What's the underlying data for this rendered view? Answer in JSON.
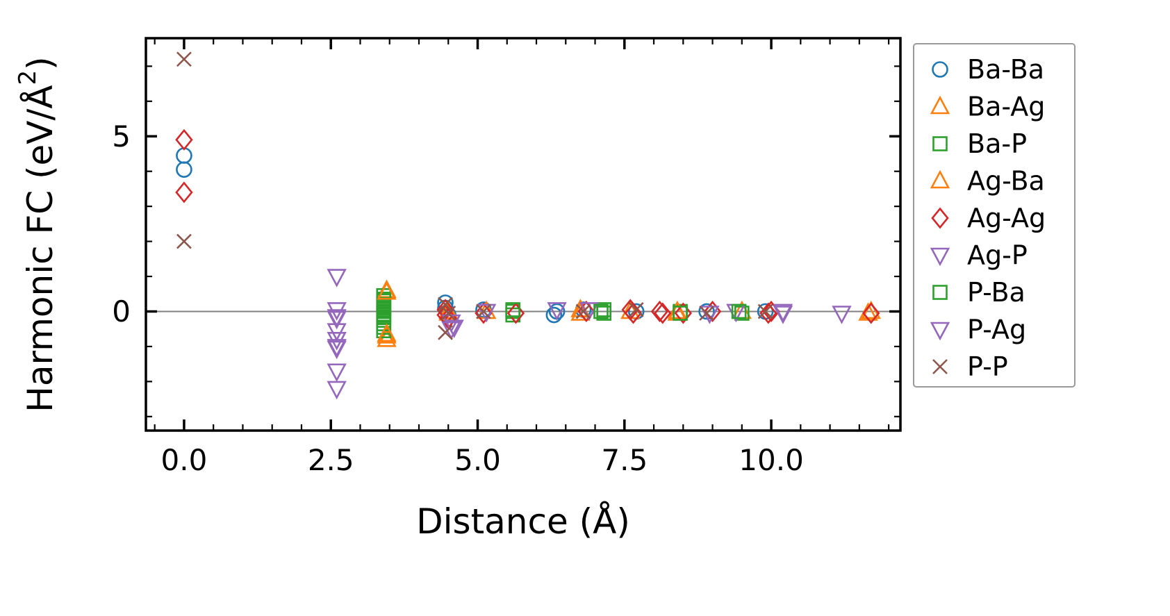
{
  "figure": {
    "background": "#ffffff"
  },
  "chart_data": {
    "type": "scatter",
    "title": "",
    "xlabel": "Distance (Å)",
    "ylabel": "Harmonic FC (eV/Å²)",
    "xlim": [
      -0.65,
      12.2
    ],
    "ylim": [
      -3.4,
      7.8
    ],
    "xticks": [
      0.0,
      2.5,
      5.0,
      7.5,
      10.0
    ],
    "xtick_labels": [
      "0.0",
      "2.5",
      "5.0",
      "7.5",
      "10.0"
    ],
    "yticks": [
      0,
      5
    ],
    "ytick_labels": [
      "0",
      "5"
    ],
    "minor_x_step": 0.5,
    "minor_y_step": 1.0,
    "grid": false,
    "zero_line": {
      "y": 0,
      "color": "#808080"
    },
    "axis_color": "#000000",
    "legend": {
      "position": "outside-right",
      "border_color": "#999999",
      "background": "#ffffff"
    },
    "series": [
      {
        "name": "Ba-Ba",
        "marker": "circle",
        "color": "#1f77b4",
        "points": [
          [
            0,
            4.45
          ],
          [
            0,
            4.05
          ],
          [
            4.45,
            0.25
          ],
          [
            4.45,
            0.1
          ],
          [
            4.5,
            -0.1
          ],
          [
            5.1,
            0.05
          ],
          [
            6.3,
            -0.1
          ],
          [
            6.35,
            0.0
          ],
          [
            6.8,
            0.05
          ],
          [
            7.7,
            0.0
          ],
          [
            8.9,
            0.0
          ],
          [
            9.9,
            0.0
          ]
        ]
      },
      {
        "name": "Ba-Ag",
        "marker": "triangle-up",
        "color": "#ff7f0e",
        "points": [
          [
            3.45,
            0.6
          ],
          [
            3.45,
            -0.7
          ],
          [
            3.45,
            -0.8
          ],
          [
            4.5,
            -0.05
          ],
          [
            5.15,
            0.0
          ],
          [
            6.75,
            0.05
          ],
          [
            7.6,
            0.0
          ],
          [
            8.4,
            -0.05
          ],
          [
            9.5,
            0.0
          ],
          [
            11.7,
            0.0
          ]
        ]
      },
      {
        "name": "Ba-P",
        "marker": "square",
        "color": "#2ca02c",
        "points": [
          [
            3.4,
            0.45
          ],
          [
            3.4,
            0.35
          ],
          [
            3.4,
            0.3
          ],
          [
            3.4,
            0.2
          ],
          [
            3.4,
            0.15
          ],
          [
            3.4,
            0.1
          ],
          [
            3.4,
            0.05
          ],
          [
            3.4,
            0.0
          ],
          [
            3.4,
            -0.1
          ],
          [
            3.4,
            -0.15
          ],
          [
            3.4,
            -0.25
          ],
          [
            3.4,
            -0.35
          ],
          [
            3.4,
            -0.45
          ],
          [
            3.4,
            -0.55
          ],
          [
            5.6,
            0.0
          ],
          [
            5.6,
            -0.1
          ],
          [
            7.15,
            0.05
          ],
          [
            7.15,
            -0.05
          ],
          [
            8.45,
            0.0
          ],
          [
            9.5,
            -0.05
          ]
        ]
      },
      {
        "name": "Ag-Ba",
        "marker": "triangle-up",
        "color": "#ff7f0e",
        "points": [
          [
            3.45,
            0.55
          ],
          [
            3.45,
            -0.65
          ],
          [
            4.5,
            0.0
          ],
          [
            6.75,
            -0.05
          ],
          [
            8.4,
            0.0
          ],
          [
            11.65,
            -0.05
          ]
        ]
      },
      {
        "name": "Ag-Ag",
        "marker": "diamond",
        "color": "#d62728",
        "points": [
          [
            0,
            4.9
          ],
          [
            0,
            3.4
          ],
          [
            4.45,
            0.05
          ],
          [
            4.45,
            -0.1
          ],
          [
            4.5,
            -0.2
          ],
          [
            5.1,
            -0.05
          ],
          [
            5.65,
            -0.05
          ],
          [
            6.85,
            0.0
          ],
          [
            7.6,
            0.05
          ],
          [
            7.65,
            -0.05
          ],
          [
            8.1,
            0.0
          ],
          [
            8.15,
            -0.05
          ],
          [
            8.5,
            -0.05
          ],
          [
            9.0,
            0.0
          ],
          [
            9.95,
            -0.05
          ],
          [
            10.0,
            0.0
          ],
          [
            11.7,
            -0.05
          ]
        ]
      },
      {
        "name": "Ag-P",
        "marker": "triangle-down",
        "color": "#9467bd",
        "points": [
          [
            2.6,
            1.0
          ],
          [
            2.6,
            0.05
          ],
          [
            2.6,
            -0.2
          ],
          [
            2.6,
            -0.55
          ],
          [
            2.6,
            -0.8
          ],
          [
            2.6,
            -1.05
          ],
          [
            2.6,
            -1.7
          ],
          [
            2.6,
            -2.2
          ],
          [
            4.55,
            -0.3
          ],
          [
            4.55,
            -0.5
          ],
          [
            5.15,
            0.0
          ],
          [
            6.9,
            0.05
          ],
          [
            8.95,
            -0.05
          ],
          [
            9.4,
            0.0
          ],
          [
            10.2,
            0.0
          ],
          [
            11.2,
            -0.05
          ]
        ]
      },
      {
        "name": "P-Ba",
        "marker": "square",
        "color": "#2ca02c",
        "points": [
          [
            5.6,
            0.05
          ],
          [
            7.1,
            0.0
          ],
          [
            8.45,
            -0.05
          ],
          [
            9.45,
            0.0
          ]
        ]
      },
      {
        "name": "P-Ag",
        "marker": "triangle-down",
        "color": "#9467bd",
        "points": [
          [
            2.6,
            -0.15
          ],
          [
            2.6,
            -1.0
          ],
          [
            4.6,
            -0.45
          ],
          [
            6.35,
            0.05
          ],
          [
            10.2,
            -0.05
          ]
        ]
      },
      {
        "name": "P-P",
        "marker": "x",
        "color": "#8c564b",
        "points": [
          [
            0,
            7.2
          ],
          [
            0,
            2.0
          ],
          [
            4.45,
            0.2
          ],
          [
            4.45,
            -0.6
          ],
          [
            4.5,
            -0.05
          ],
          [
            5.1,
            0.0
          ],
          [
            6.8,
            0.0
          ],
          [
            7.7,
            0.05
          ],
          [
            8.9,
            -0.05
          ],
          [
            9.9,
            0.0
          ]
        ]
      }
    ]
  }
}
